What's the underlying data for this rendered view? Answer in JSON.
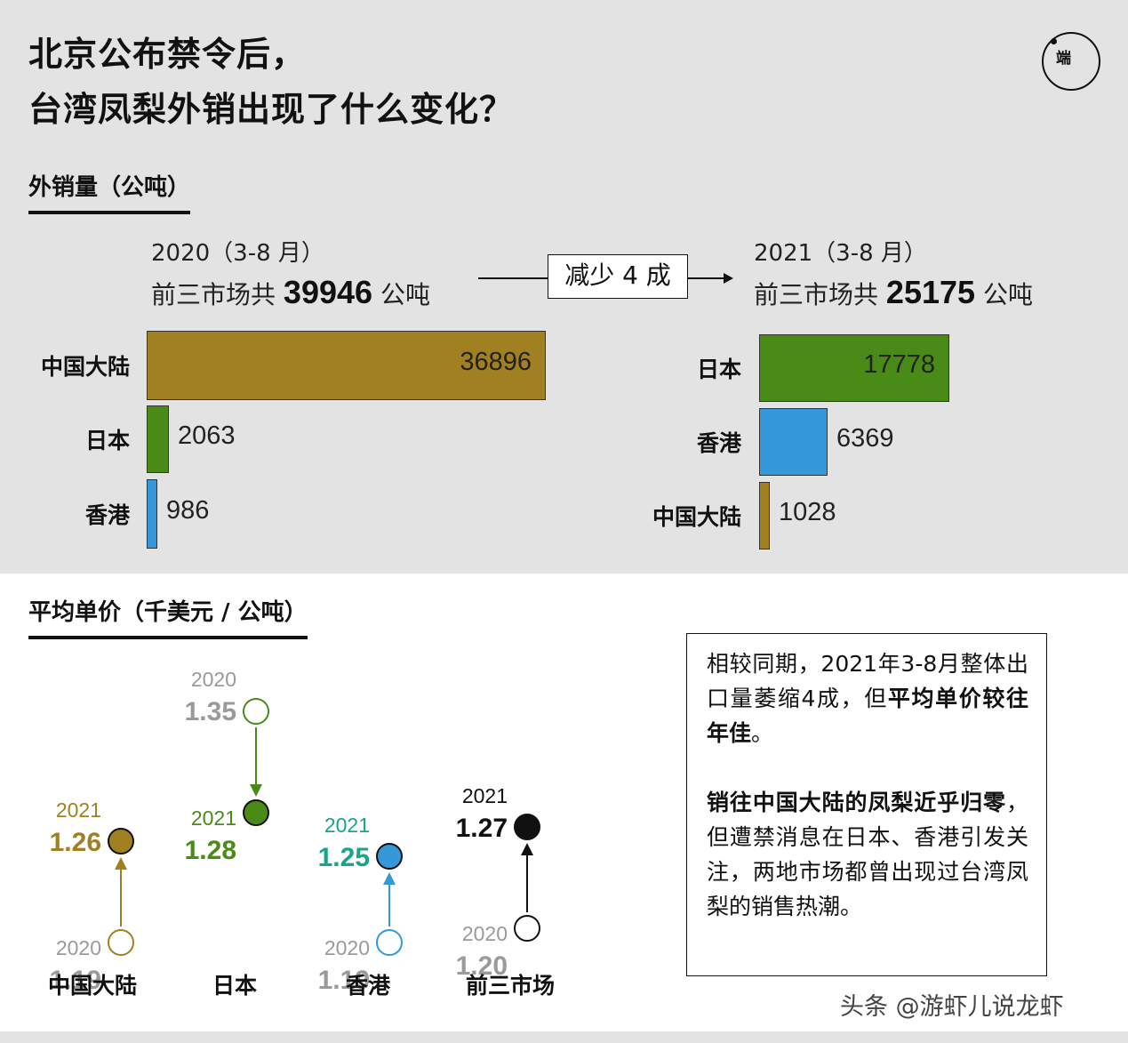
{
  "title_lines": [
    "北京公布禁令后，",
    "台湾凤梨外销出现了什么变化？"
  ],
  "logo_text": "端",
  "volume_section": {
    "title": "外销量（公吨）",
    "drop_label": "减少 4 成",
    "left": {
      "year_label": "2020（3-8 月）",
      "total_prefix": "前三市场共",
      "total_value": "39946",
      "total_unit": "公吨"
    },
    "right": {
      "year_label": "2021（3-8 月）",
      "total_prefix": "前三市场共",
      "total_value": "25175",
      "total_unit": "公吨"
    }
  },
  "price_section": {
    "title": "平均单价（千美元 / 公吨）"
  },
  "note": {
    "p1_normal": "相较同期，2021年3-8月整体出口量萎缩4成，但",
    "p1_bold": "平均单价较往年佳",
    "p1_end": "。",
    "p2_bold": "销往中国大陆的凤梨近乎归零",
    "p2_normal": "，但遭禁消息在日本、香港引发关注，两地市场都曾出现过台湾凤梨的销售热潮。"
  },
  "watermark": "头条 @游虾儿说龙虾",
  "colors": {
    "mainland": "#a08020",
    "japan": "#4a8a16",
    "hongkong": "#3498db",
    "total": "#111111",
    "muted": "#9a9a9a",
    "hk_2021_text": "#17a589"
  },
  "chart_data": [
    {
      "type": "bar",
      "orientation": "horizontal",
      "title": "2020（3-8 月）",
      "categories": [
        "中国大陆",
        "日本",
        "香港"
      ],
      "values": [
        36896,
        2063,
        986
      ],
      "colors": [
        "#a08020",
        "#4a8a16",
        "#3498db"
      ]
    },
    {
      "type": "bar",
      "orientation": "horizontal",
      "title": "2021（3-8 月）",
      "categories": [
        "日本",
        "香港",
        "中国大陆"
      ],
      "values": [
        17778,
        6369,
        1028
      ],
      "colors": [
        "#4a8a16",
        "#3498db",
        "#a08020"
      ]
    },
    {
      "type": "scatter",
      "title": "平均单价（千美元 / 公吨）",
      "series": [
        {
          "name": "中国大陆",
          "year_from": "2020",
          "value_from": 1.19,
          "year_to": "2021",
          "value_to": 1.26,
          "color": "#a08020"
        },
        {
          "name": "日本",
          "year_from": "2020",
          "value_from": 1.35,
          "year_to": "2021",
          "value_to": 1.28,
          "color": "#4a8a16"
        },
        {
          "name": "香港",
          "year_from": "2020",
          "value_from": 1.19,
          "year_to": "2021",
          "value_to": 1.25,
          "color": "#3498db"
        },
        {
          "name": "前三市场",
          "year_from": "2020",
          "value_from": 1.2,
          "year_to": "2021",
          "value_to": 1.27,
          "color": "#111111"
        }
      ]
    }
  ]
}
